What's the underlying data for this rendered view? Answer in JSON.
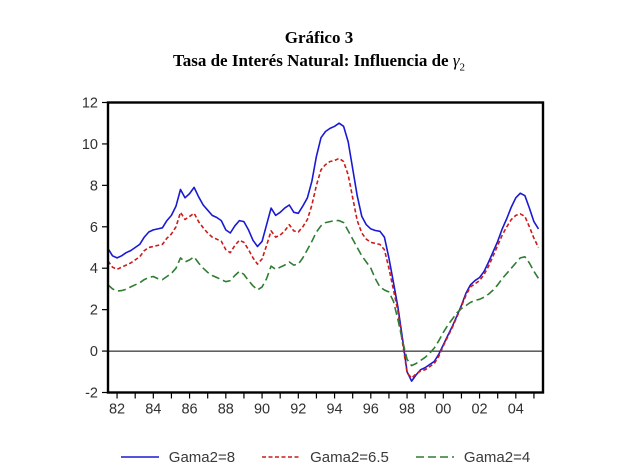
{
  "title": {
    "line1": "Gráfico 3",
    "line2_prefix": "Tasa de Interés Natural: Influencia de ",
    "gamma": "γ",
    "gamma_sub": "2"
  },
  "chart_data": {
    "type": "line",
    "title": "Gráfico 3",
    "subtitle": "Tasa de Interés Natural: Influencia de γ2",
    "x_axis_start": 1982,
    "x_axis_end": 2006,
    "x_start": 1982,
    "x_step": 0.25,
    "frequency": "quarterly",
    "ylim": [
      -2,
      12
    ],
    "y_ticks": [
      12,
      10,
      8,
      6,
      4,
      2,
      0,
      -2
    ],
    "x_tick_years_minor_every": 1,
    "x_tick_labels": [
      "82",
      "84",
      "86",
      "88",
      "90",
      "92",
      "94",
      "96",
      "98",
      "00",
      "02",
      "04"
    ],
    "zero_line": true,
    "grid": false,
    "legend_position": "bottom-center",
    "series": [
      {
        "name": "Gama2=8",
        "color": "#1A1AD2",
        "dash": "solid",
        "values": [
          4.95,
          4.6,
          4.5,
          4.6,
          4.75,
          4.85,
          5.0,
          5.15,
          5.5,
          5.75,
          5.85,
          5.9,
          5.95,
          6.3,
          6.55,
          7.0,
          7.8,
          7.4,
          7.6,
          7.9,
          7.45,
          7.05,
          6.8,
          6.55,
          6.45,
          6.3,
          5.85,
          5.7,
          6.05,
          6.3,
          6.25,
          5.85,
          5.35,
          5.05,
          5.3,
          6.1,
          6.9,
          6.55,
          6.7,
          6.9,
          7.05,
          6.7,
          6.65,
          7.0,
          7.4,
          8.2,
          9.4,
          10.3,
          10.6,
          10.75,
          10.85,
          11.0,
          10.85,
          10.1,
          8.8,
          7.5,
          6.5,
          6.1,
          5.9,
          5.82,
          5.78,
          5.5,
          4.5,
          3.3,
          2.1,
          0.6,
          -1.0,
          -1.45,
          -1.15,
          -0.9,
          -0.8,
          -0.65,
          -0.5,
          -0.15,
          0.3,
          0.75,
          1.2,
          1.7,
          2.2,
          2.8,
          3.2,
          3.4,
          3.55,
          3.85,
          4.3,
          4.8,
          5.3,
          5.9,
          6.4,
          6.95,
          7.4,
          7.62,
          7.5,
          6.9,
          6.25,
          5.9
        ]
      },
      {
        "name": "Gama2=6.5",
        "color": "#CE1A1A",
        "dash": "short-dash",
        "values": [
          4.35,
          4.05,
          3.95,
          4.05,
          4.15,
          4.25,
          4.4,
          4.55,
          4.85,
          5.0,
          5.05,
          5.1,
          5.15,
          5.45,
          5.65,
          6.0,
          6.7,
          6.35,
          6.5,
          6.65,
          6.25,
          5.95,
          5.7,
          5.5,
          5.4,
          5.3,
          4.9,
          4.75,
          5.1,
          5.35,
          5.25,
          4.9,
          4.5,
          4.2,
          4.45,
          5.1,
          5.8,
          5.5,
          5.6,
          5.8,
          6.1,
          5.8,
          5.75,
          6.0,
          6.35,
          7.05,
          8.0,
          8.75,
          9.0,
          9.15,
          9.2,
          9.3,
          9.15,
          8.5,
          7.4,
          6.3,
          5.7,
          5.4,
          5.25,
          5.2,
          5.15,
          4.9,
          4.0,
          2.95,
          1.9,
          0.4,
          -1.05,
          -1.3,
          -1.1,
          -0.95,
          -0.9,
          -0.75,
          -0.6,
          -0.25,
          0.25,
          0.7,
          1.15,
          1.65,
          2.15,
          2.7,
          3.1,
          3.25,
          3.4,
          3.7,
          4.1,
          4.6,
          5.1,
          5.6,
          6.0,
          6.35,
          6.55,
          6.62,
          6.5,
          6.0,
          5.45,
          5.0
        ]
      },
      {
        "name": "Gama2=4",
        "color": "#2E7D32",
        "dash": "long-dash",
        "values": [
          3.2,
          3.0,
          2.9,
          2.92,
          2.98,
          3.1,
          3.2,
          3.3,
          3.45,
          3.55,
          3.6,
          3.5,
          3.45,
          3.6,
          3.75,
          4.0,
          4.5,
          4.3,
          4.4,
          4.55,
          4.25,
          4.0,
          3.8,
          3.65,
          3.55,
          3.45,
          3.35,
          3.4,
          3.65,
          3.85,
          3.7,
          3.4,
          3.15,
          2.95,
          3.1,
          3.5,
          4.1,
          3.95,
          4.05,
          4.15,
          4.3,
          4.15,
          4.2,
          4.5,
          4.9,
          5.3,
          5.75,
          6.05,
          6.2,
          6.25,
          6.3,
          6.3,
          6.2,
          5.8,
          5.4,
          5.0,
          4.6,
          4.3,
          4.0,
          3.5,
          3.1,
          2.95,
          2.85,
          2.4,
          1.5,
          0.5,
          -0.4,
          -0.7,
          -0.6,
          -0.45,
          -0.3,
          -0.1,
          0.15,
          0.5,
          0.9,
          1.25,
          1.55,
          1.85,
          2.05,
          2.2,
          2.35,
          2.45,
          2.5,
          2.6,
          2.75,
          2.95,
          3.2,
          3.5,
          3.75,
          4.0,
          4.25,
          4.5,
          4.55,
          4.25,
          3.85,
          3.5
        ]
      }
    ],
    "axis_color": "#000000",
    "tick_label_color": "#303030"
  }
}
